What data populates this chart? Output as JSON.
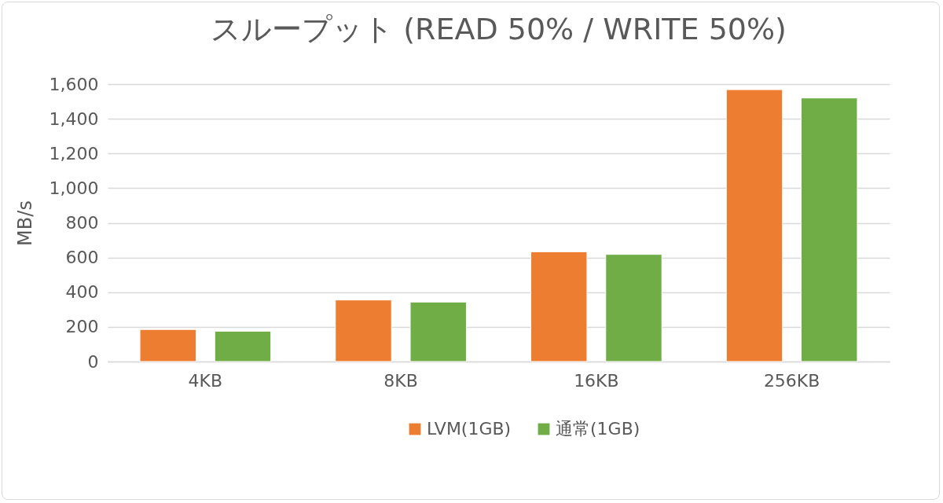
{
  "chart_data": {
    "type": "bar",
    "title": "スループット (READ 50% / WRITE 50%)",
    "ylabel": "MB/s",
    "categories": [
      "4KB",
      "8KB",
      "16KB",
      "256KB"
    ],
    "series": [
      {
        "name": "LVM(1GB)",
        "color": "#ed7d31",
        "values": [
          185,
          355,
          633,
          1568
        ]
      },
      {
        "name": "通常(1GB)",
        "color": "#70ad47",
        "values": [
          175,
          343,
          618,
          1520
        ]
      }
    ],
    "ylim": [
      0,
      1600
    ],
    "yticks": [
      0,
      200,
      400,
      600,
      800,
      {
        "value": 1000,
        "label": "1,000"
      },
      {
        "value": 1200,
        "label": "1,200"
      },
      {
        "value": 1400,
        "label": "1,400"
      },
      {
        "value": 1600,
        "label": "1,600"
      }
    ],
    "grid": "y",
    "legend": "bottom"
  }
}
